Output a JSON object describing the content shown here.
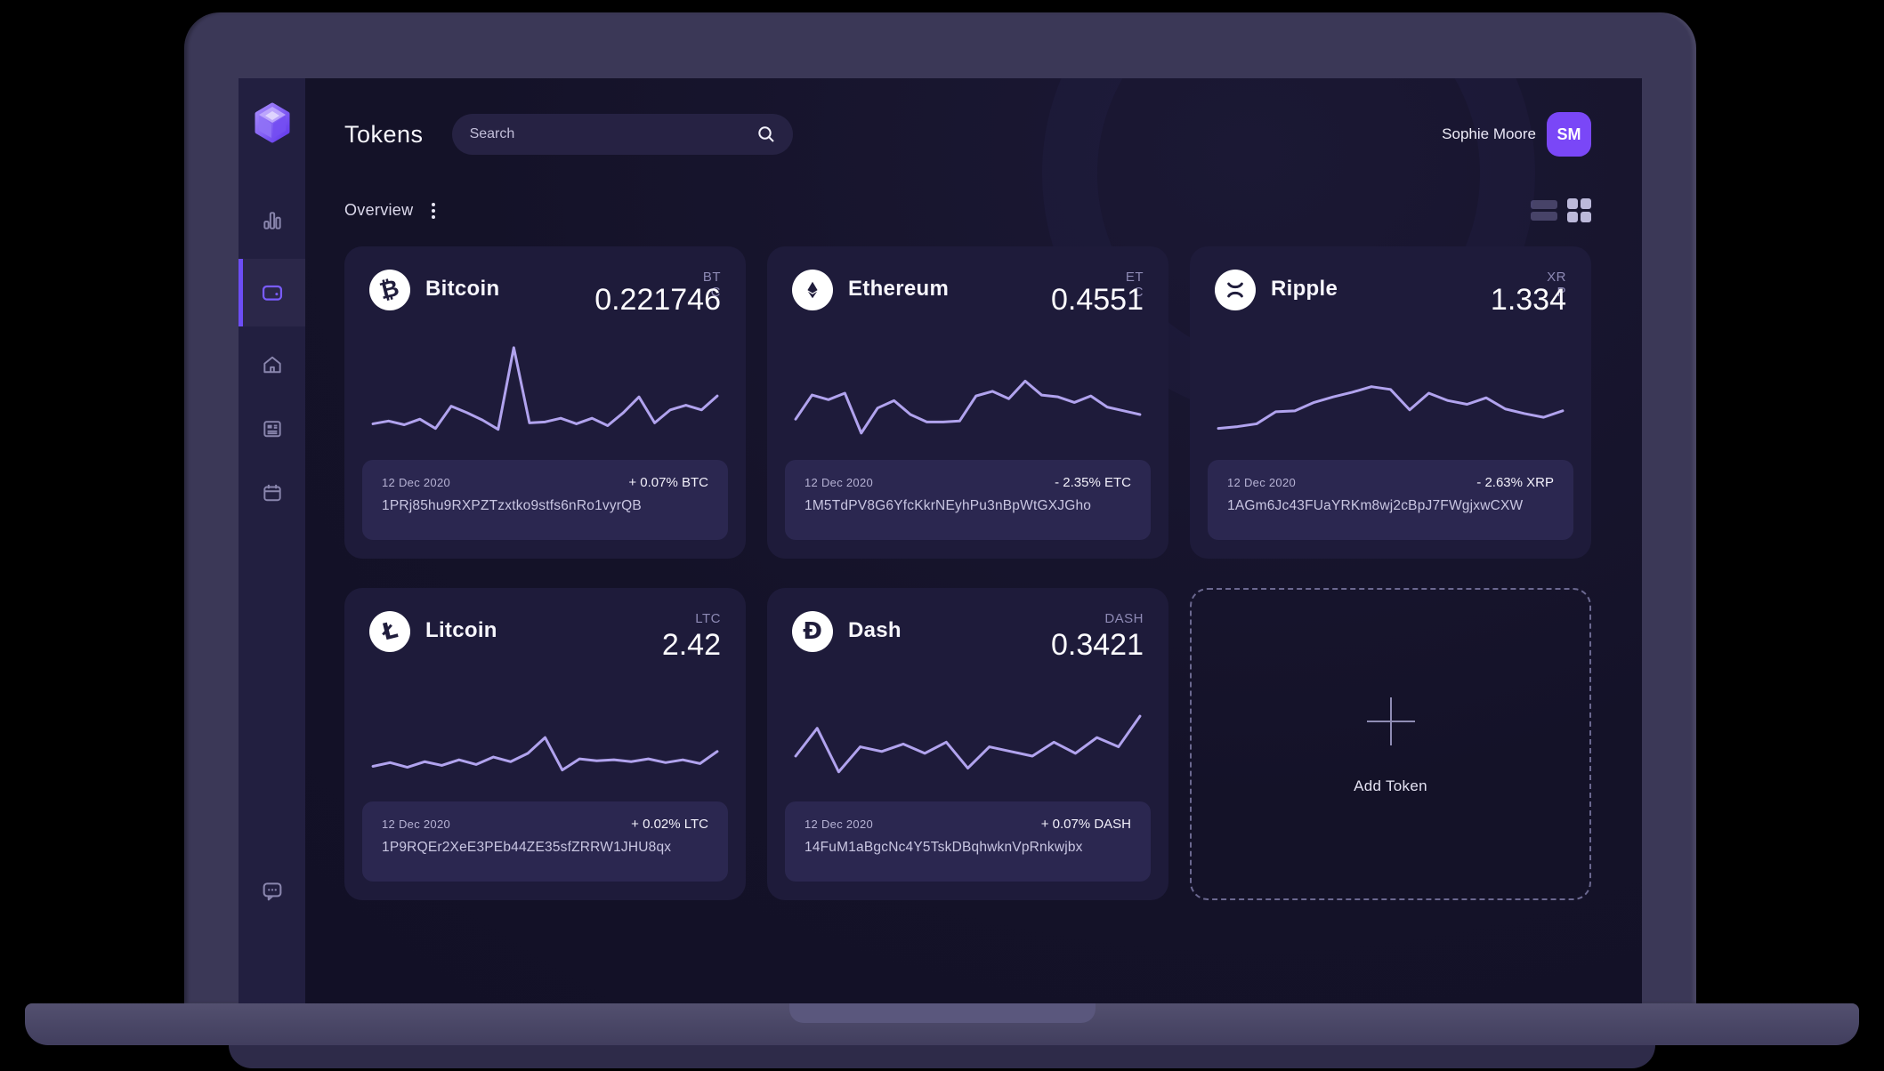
{
  "header": {
    "title": "Tokens",
    "search_placeholder": "Search",
    "user_name": "Sophie Moore",
    "user_initials": "SM"
  },
  "toolbar": {
    "section_title": "Overview"
  },
  "sidebar": {
    "items": [
      {
        "name": "analytics",
        "active": false
      },
      {
        "name": "wallet",
        "active": true
      },
      {
        "name": "home",
        "active": false
      },
      {
        "name": "news",
        "active": false
      },
      {
        "name": "calendar",
        "active": false
      }
    ],
    "bottom_item": {
      "name": "chat"
    }
  },
  "cards": [
    {
      "name": "Bitcoin",
      "ticker": "BTC",
      "value": "0.221746",
      "date": "12 Dec 2020",
      "change": "+ 0.07% BTC",
      "address": "1PRj85hu9RXPZTzxtko9stfs6nRo1vyrQB",
      "spark": [
        15,
        18,
        14,
        20,
        10,
        34,
        27,
        19,
        9,
        97,
        16,
        17,
        21,
        15,
        21,
        13,
        27,
        44,
        16,
        30,
        35,
        30,
        45
      ]
    },
    {
      "name": "Ethereum",
      "ticker": "ETC",
      "value": "0.4551",
      "date": "12 Dec 2020",
      "change": "- 2.35% ETC",
      "address": "1M5TdPV8G6YfcKkrNEyhPu3nBpWtGXJGho",
      "spark": [
        20,
        46,
        41,
        48,
        5,
        32,
        40,
        25,
        17,
        17,
        18,
        45,
        50,
        42,
        61,
        46,
        44,
        38,
        45,
        33,
        29,
        25
      ]
    },
    {
      "name": "Ripple",
      "ticker": "XRP",
      "value": "1.334",
      "date": "12 Dec 2020",
      "change": "- 2.63% XRP",
      "address": "1AGm6Jc43FUaYRKm8wj2cBpJ7FWgjxwCXW",
      "spark": [
        10,
        12,
        15,
        28,
        29,
        38,
        44,
        49,
        55,
        52,
        30,
        48,
        40,
        36,
        43,
        31,
        26,
        22,
        29
      ]
    },
    {
      "name": "Litcoin",
      "ticker": "LTC",
      "value": "2.42",
      "date": "12 Dec 2020",
      "change": "+ 0.02% LTC",
      "address": "1P9RQEr2XeE3PEb44ZE35sfZRRW1JHU8qx",
      "spark": [
        14,
        18,
        13,
        19,
        15,
        21,
        16,
        24,
        19,
        28,
        45,
        10,
        22,
        20,
        21,
        19,
        22,
        18,
        21,
        17,
        30
      ]
    },
    {
      "name": "Dash",
      "ticker": "DASH",
      "value": "0.3421",
      "date": "12 Dec 2020",
      "change": "+ 0.07% DASH",
      "address": "14FuM1aBgcNc4Y5TskDBqhwknVpRnkwjbx",
      "spark": [
        25,
        55,
        8,
        35,
        30,
        38,
        28,
        40,
        12,
        35,
        30,
        25,
        40,
        28,
        45,
        35,
        68
      ]
    }
  ],
  "add_token": {
    "label": "Add Token"
  },
  "colors": {
    "accent": "#6d4df6",
    "avatar_bg": "#7a47f7",
    "spark": "#b1a3ee",
    "screen_bg": "#14122a",
    "sidebar_bg": "#221f40",
    "card_bg": "#1e1b3a",
    "card_footer_bg": "#2b2750",
    "bezel": "#3b3857"
  }
}
